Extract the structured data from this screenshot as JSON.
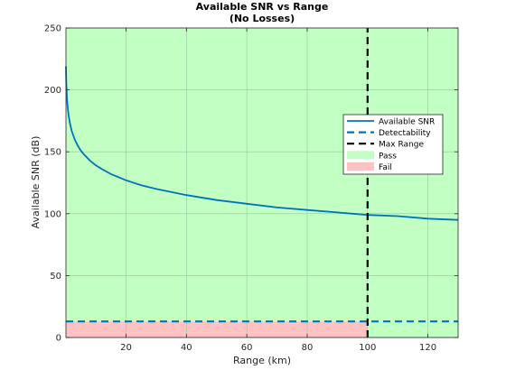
{
  "chart_data": {
    "type": "line",
    "title": "Available SNR vs Range",
    "subtitle": "(No Losses)",
    "xlabel": "Range (km)",
    "ylabel": "Available SNR (dB)",
    "xlim": [
      0.1,
      130
    ],
    "ylim": [
      0,
      250
    ],
    "xticks": [
      20,
      40,
      60,
      80,
      100,
      120
    ],
    "yticks": [
      0,
      50,
      100,
      150,
      200,
      250
    ],
    "grid": true,
    "legend_position": "right",
    "regions": {
      "pass": {
        "name": "Pass",
        "color": "#c2ffc2",
        "y_from": 13,
        "y_to": 250
      },
      "fail": {
        "name": "Fail",
        "color": "#ffc2c2",
        "y_from": 0,
        "y_to": 13,
        "x_to": 100
      }
    },
    "series": [
      {
        "name": "Available SNR",
        "style": "solid",
        "color": "#0072bd",
        "x": [
          0.1,
          0.2,
          0.3,
          0.5,
          0.75,
          1,
          1.5,
          2,
          3,
          4,
          5,
          6,
          8,
          10,
          12,
          15,
          20,
          25,
          30,
          40,
          50,
          60,
          70,
          80,
          90,
          100,
          110,
          120,
          130
        ],
        "y": [
          219,
          207,
          200,
          191,
          184,
          179,
          172,
          167,
          160,
          155,
          151,
          148,
          143,
          139,
          136,
          132,
          127,
          123,
          120,
          115,
          111,
          108,
          105,
          103,
          101,
          99,
          98,
          96,
          95
        ]
      },
      {
        "name": "Detectability",
        "style": "dashed",
        "color": "#0072bd",
        "x": [
          0.1,
          130
        ],
        "y": [
          13,
          13
        ]
      },
      {
        "name": "Max Range",
        "style": "dashed",
        "color": "#000000",
        "x": [
          100,
          100
        ],
        "y": [
          0,
          250
        ]
      }
    ]
  }
}
